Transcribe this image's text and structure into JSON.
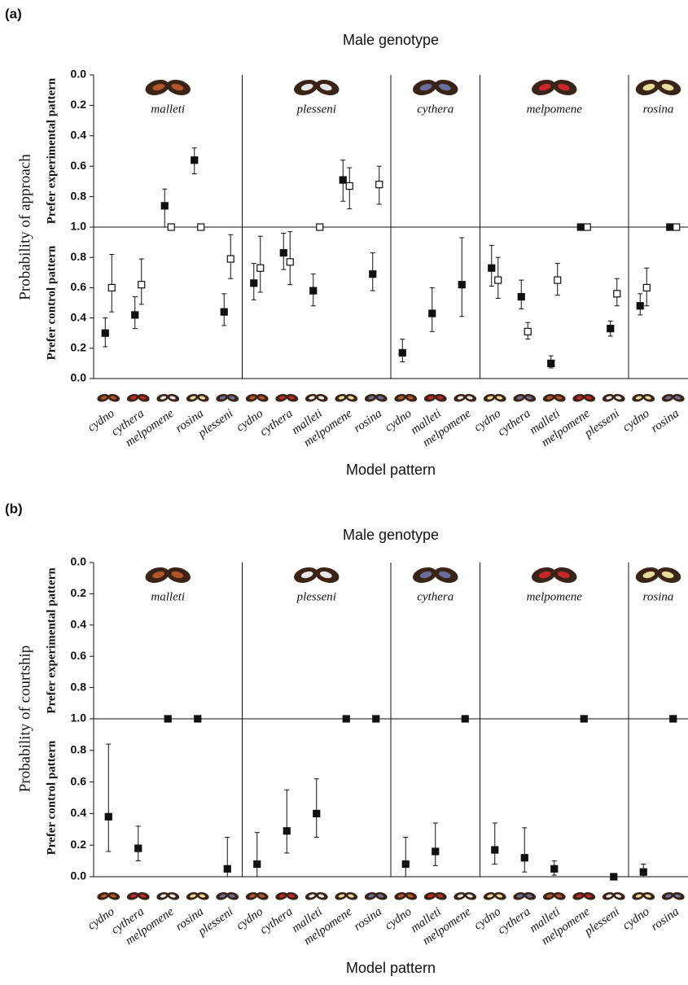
{
  "chart_data": [
    {
      "type": "errorbar",
      "panel_label": "(a)",
      "title": "Male genotype",
      "xlabel": "Model pattern",
      "ylabel": "Probability of approach",
      "ylabel_control": "Prefer control pattern",
      "y2label": "Prefer experimental pattern",
      "groups": [
        {
          "name": "malleti",
          "categories": [
            "cydno",
            "cythera",
            "melpomene",
            "rosina",
            "plesseni"
          ]
        },
        {
          "name": "plesseni",
          "categories": [
            "cydno",
            "cythera",
            "malleti",
            "melpomene",
            "rosina"
          ]
        },
        {
          "name": "cythera",
          "categories": [
            "cydno",
            "malleti",
            "melpomene"
          ]
        },
        {
          "name": "melpomene",
          "categories": [
            "cydno",
            "cythera",
            "malleti",
            "melpomene",
            "plesseni"
          ]
        },
        {
          "name": "rosina",
          "categories": [
            "cydno",
            "rosina"
          ]
        }
      ],
      "ylim": [
        0,
        1
      ],
      "yticks": [
        {
          "value": 0,
          "label": "0.0"
        },
        {
          "value": 0.2,
          "label": "0.2"
        },
        {
          "value": 0.4,
          "label": "0.4"
        },
        {
          "value": 0.6,
          "label": "0.6"
        },
        {
          "value": 0.8,
          "label": "0.8"
        }
      ],
      "y2lim": [
        1,
        0
      ],
      "y2ticks": [
        {
          "value": 0,
          "label": "0.0"
        },
        {
          "value": 0.2,
          "label": "0.2"
        },
        {
          "value": 0.4,
          "label": "0.4"
        },
        {
          "value": 0.6,
          "label": "0.6"
        },
        {
          "value": 0.8,
          "label": "0.8"
        },
        {
          "value": 1,
          "label": "1.0"
        }
      ],
      "series": [
        {
          "color": "#111111",
          "fill": "#111111",
          "values": [
            0.3,
            0.42,
            null,
            null,
            0.44,
            0.63,
            0.83,
            0.58,
            null,
            0.69,
            0.17,
            0.43,
            0.62,
            0.73,
            0.54,
            0.1,
            null,
            0.33,
            0.48,
            null
          ],
          "low": [
            0.21,
            0.33,
            null,
            null,
            0.35,
            0.52,
            0.72,
            0.48,
            null,
            0.58,
            0.11,
            0.31,
            0.41,
            0.61,
            0.46,
            0.07,
            null,
            0.28,
            0.42,
            null
          ],
          "high": [
            0.4,
            0.54,
            null,
            null,
            0.56,
            0.76,
            0.96,
            0.69,
            null,
            0.83,
            0.26,
            0.6,
            0.93,
            0.88,
            0.65,
            0.15,
            null,
            0.38,
            0.56,
            null
          ]
        },
        {
          "color": "#111111",
          "fill": "#111111",
          "axis": "y2",
          "values": [
            null,
            null,
            0.86,
            0.56,
            null,
            null,
            null,
            null,
            0.69,
            null,
            null,
            null,
            null,
            null,
            null,
            null,
            1.0,
            null,
            null,
            1.0
          ],
          "low": [
            null,
            null,
            0.75,
            0.48,
            null,
            null,
            null,
            null,
            0.56,
            null,
            null,
            null,
            null,
            null,
            null,
            null,
            null,
            null,
            null,
            null
          ],
          "high": [
            null,
            null,
            1.0,
            0.65,
            null,
            null,
            null,
            null,
            0.83,
            null,
            null,
            null,
            null,
            null,
            null,
            null,
            null,
            null,
            null,
            null
          ]
        },
        {
          "color": "#111111",
          "fill": "#ffffff",
          "values": [
            0.6,
            0.62,
            null,
            null,
            0.79,
            0.73,
            0.77,
            null,
            null,
            null,
            null,
            null,
            null,
            0.65,
            0.31,
            0.65,
            null,
            0.56,
            0.6,
            null
          ],
          "low": [
            0.44,
            0.49,
            null,
            null,
            0.66,
            0.57,
            0.62,
            null,
            null,
            null,
            null,
            null,
            null,
            0.53,
            0.26,
            0.55,
            null,
            0.48,
            0.48,
            null
          ],
          "high": [
            0.82,
            0.79,
            null,
            null,
            0.95,
            0.94,
            0.97,
            null,
            null,
            null,
            null,
            null,
            null,
            0.8,
            0.37,
            0.76,
            null,
            0.66,
            0.73,
            null
          ]
        },
        {
          "color": "#111111",
          "fill": "#ffffff",
          "axis": "y2",
          "values": [
            null,
            null,
            1.0,
            1.0,
            null,
            null,
            null,
            1.0,
            0.73,
            0.72,
            null,
            null,
            null,
            null,
            null,
            null,
            1.0,
            null,
            null,
            1.0
          ],
          "low": [
            null,
            null,
            null,
            null,
            null,
            null,
            null,
            null,
            0.61,
            0.6,
            null,
            null,
            null,
            null,
            null,
            null,
            null,
            null,
            null,
            null
          ],
          "high": [
            null,
            null,
            null,
            null,
            null,
            null,
            null,
            null,
            0.88,
            0.85,
            null,
            null,
            null,
            null,
            null,
            null,
            null,
            null,
            null,
            null
          ]
        }
      ]
    },
    {
      "type": "errorbar",
      "panel_label": "(b)",
      "title": "Male genotype",
      "xlabel": "Model pattern",
      "ylabel": "Probability of courtship",
      "ylabel_control": "Prefer control pattern",
      "y2label": "Prefer experimental pattern",
      "groups": [
        {
          "name": "malleti",
          "categories": [
            "cydno",
            "cythera",
            "melpomene",
            "rosina",
            "plesseni"
          ]
        },
        {
          "name": "plesseni",
          "categories": [
            "cydno",
            "cythera",
            "malleti",
            "melpomene",
            "rosina"
          ]
        },
        {
          "name": "cythera",
          "categories": [
            "cydno",
            "malleti",
            "melpomene"
          ]
        },
        {
          "name": "melpomene",
          "categories": [
            "cydno",
            "cythera",
            "malleti",
            "melpomene",
            "plesseni"
          ]
        },
        {
          "name": "rosina",
          "categories": [
            "cydno",
            "rosina"
          ]
        }
      ],
      "ylim": [
        0,
        1
      ],
      "yticks": [
        {
          "value": 0,
          "label": "0.0"
        },
        {
          "value": 0.2,
          "label": "0.2"
        },
        {
          "value": 0.4,
          "label": "0.4"
        },
        {
          "value": 0.6,
          "label": "0.6"
        },
        {
          "value": 0.8,
          "label": "0.8"
        }
      ],
      "y2lim": [
        1,
        0
      ],
      "y2ticks": [
        {
          "value": 0,
          "label": "0.0"
        },
        {
          "value": 0.2,
          "label": "0.2"
        },
        {
          "value": 0.4,
          "label": "0.4"
        },
        {
          "value": 0.6,
          "label": "0.6"
        },
        {
          "value": 0.8,
          "label": "0.8"
        },
        {
          "value": 1,
          "label": "1.0"
        }
      ],
      "series": [
        {
          "color": "#111111",
          "fill": "#111111",
          "values": [
            0.38,
            0.18,
            null,
            null,
            0.05,
            0.08,
            0.29,
            0.4,
            null,
            null,
            0.08,
            0.16,
            null,
            0.17,
            0.12,
            0.05,
            null,
            0.0,
            0.03,
            null
          ],
          "low": [
            0.16,
            0.1,
            null,
            null,
            0.0,
            0.0,
            0.15,
            0.25,
            null,
            null,
            0.0,
            0.07,
            null,
            0.08,
            0.03,
            0.01,
            null,
            null,
            0.0,
            null
          ],
          "high": [
            0.84,
            0.32,
            null,
            null,
            0.25,
            0.28,
            0.55,
            0.62,
            null,
            null,
            0.25,
            0.34,
            null,
            0.34,
            0.31,
            0.1,
            null,
            null,
            0.08,
            null
          ]
        },
        {
          "color": "#111111",
          "fill": "#111111",
          "axis": "y2",
          "values": [
            null,
            null,
            1.0,
            1.0,
            null,
            null,
            null,
            null,
            1.0,
            1.0,
            null,
            null,
            1.0,
            null,
            null,
            null,
            1.0,
            null,
            null,
            1.0
          ]
        }
      ]
    }
  ]
}
